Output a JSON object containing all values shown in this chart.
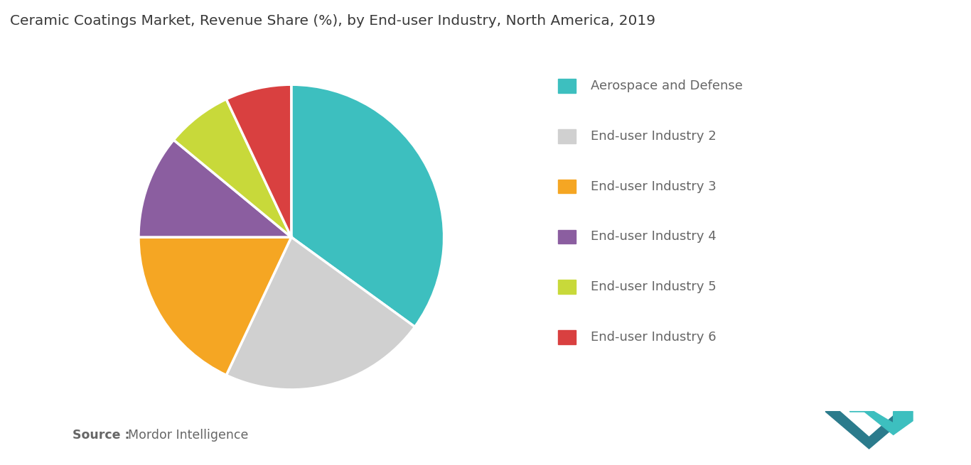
{
  "title": "Ceramic Coatings Market, Revenue Share (%), by End-user Industry, North America, 2019",
  "title_fontsize": 14.5,
  "title_color": "#3a3a3a",
  "labels": [
    "Aerospace and Defense",
    "End-user Industry 2",
    "End-user Industry 3",
    "End-user Industry 4",
    "End-user Industry 5",
    "End-user Industry 6"
  ],
  "values": [
    35,
    22,
    18,
    11,
    7,
    7
  ],
  "colors": [
    "#3DBFBF",
    "#D0D0D0",
    "#F5A623",
    "#8B5EA0",
    "#C8D93A",
    "#D94040"
  ],
  "legend_fontsize": 13,
  "legend_label_color": "#666666",
  "source_bold": "Source :",
  "source_normal": "Mordor Intelligence",
  "source_fontsize": 12.5,
  "source_color": "#666666",
  "background_color": "#FFFFFF",
  "wedge_edge_color": "#FFFFFF",
  "wedge_linewidth": 2.5,
  "startangle": 90
}
